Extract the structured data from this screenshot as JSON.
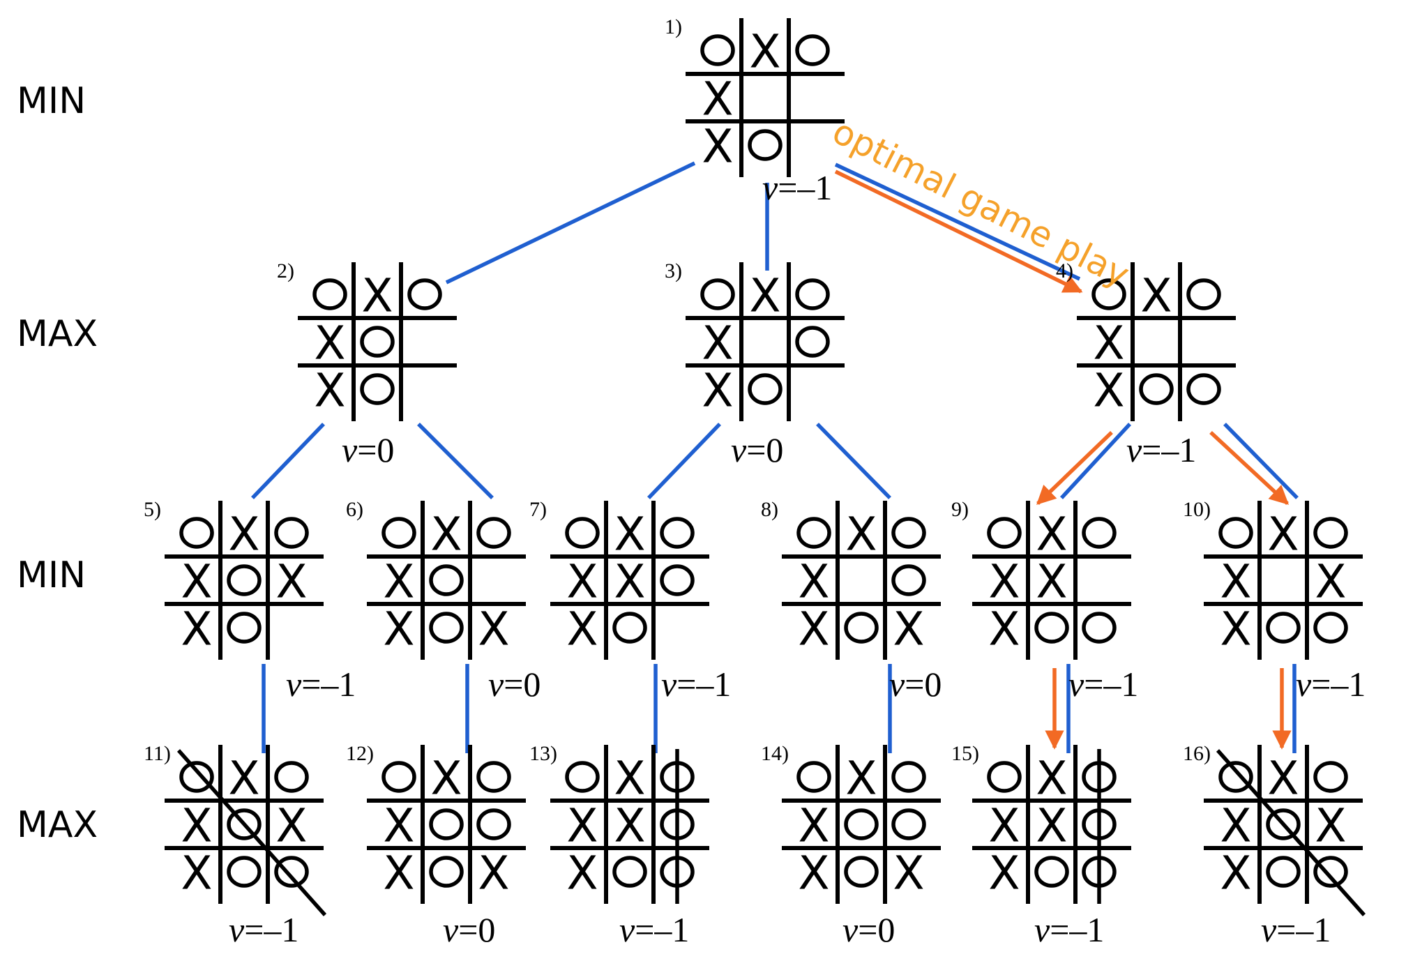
{
  "levels": [
    {
      "label": "MIN"
    },
    {
      "label": "MAX"
    },
    {
      "label": "MIN"
    },
    {
      "label": "MAX"
    }
  ],
  "annotation": {
    "text": "optimal game play",
    "color": "#f5a12a"
  },
  "colors": {
    "edge": "#1f5fd0",
    "optimal_arrow": "#f26a24",
    "annotation": "#f5a12a"
  },
  "nodes": [
    {
      "id": "1)",
      "level": 0,
      "board": [
        "O",
        "X",
        "O",
        "X",
        "",
        "",
        "X",
        "O",
        ""
      ],
      "value": "v=–1"
    },
    {
      "id": "2)",
      "level": 1,
      "board": [
        "O",
        "X",
        "O",
        "X",
        "O",
        "",
        "X",
        "O",
        ""
      ],
      "value": "v=0"
    },
    {
      "id": "3)",
      "level": 1,
      "board": [
        "O",
        "X",
        "O",
        "X",
        "",
        "O",
        "X",
        "O",
        ""
      ],
      "value": "v=0"
    },
    {
      "id": "4)",
      "level": 1,
      "board": [
        "O",
        "X",
        "O",
        "X",
        "",
        "",
        "X",
        "O",
        "O"
      ],
      "value": "v=–1"
    },
    {
      "id": "5)",
      "level": 2,
      "board": [
        "O",
        "X",
        "O",
        "X",
        "O",
        "X",
        "X",
        "O",
        ""
      ],
      "value": "v=–1"
    },
    {
      "id": "6)",
      "level": 2,
      "board": [
        "O",
        "X",
        "O",
        "X",
        "O",
        "",
        "X",
        "O",
        "X"
      ],
      "value": "v=0"
    },
    {
      "id": "7)",
      "level": 2,
      "board": [
        "O",
        "X",
        "O",
        "X",
        "X",
        "O",
        "X",
        "O",
        ""
      ],
      "value": "v=–1"
    },
    {
      "id": "8)",
      "level": 2,
      "board": [
        "O",
        "X",
        "O",
        "X",
        "",
        "O",
        "X",
        "O",
        "X"
      ],
      "value": "v=0"
    },
    {
      "id": "9)",
      "level": 2,
      "board": [
        "O",
        "X",
        "O",
        "X",
        "X",
        "",
        "X",
        "O",
        "O"
      ],
      "value": "v=–1"
    },
    {
      "id": "10)",
      "level": 2,
      "board": [
        "O",
        "X",
        "O",
        "X",
        "",
        "X",
        "X",
        "O",
        "O"
      ],
      "value": "v=–1"
    },
    {
      "id": "11)",
      "level": 3,
      "board": [
        "O",
        "X",
        "O",
        "X",
        "O",
        "X",
        "X",
        "O",
        "O"
      ],
      "value": "v=–1",
      "win_line": "diagonal"
    },
    {
      "id": "12)",
      "level": 3,
      "board": [
        "O",
        "X",
        "O",
        "X",
        "O",
        "O",
        "X",
        "O",
        "X"
      ],
      "value": "v=0"
    },
    {
      "id": "13)",
      "level": 3,
      "board": [
        "O",
        "X",
        "O",
        "X",
        "X",
        "O",
        "X",
        "O",
        "O"
      ],
      "value": "v=–1",
      "win_line": "right-column"
    },
    {
      "id": "14)",
      "level": 3,
      "board": [
        "O",
        "X",
        "O",
        "X",
        "O",
        "O",
        "X",
        "O",
        "X"
      ],
      "value": "v=0"
    },
    {
      "id": "15)",
      "level": 3,
      "board": [
        "O",
        "X",
        "O",
        "X",
        "X",
        "O",
        "X",
        "O",
        "O"
      ],
      "value": "v=–1",
      "win_line": "right-column"
    },
    {
      "id": "16)",
      "level": 3,
      "board": [
        "O",
        "X",
        "O",
        "X",
        "O",
        "X",
        "X",
        "O",
        "O"
      ],
      "value": "v=–1",
      "win_line": "diagonal"
    }
  ],
  "edges": [
    {
      "from": "1)",
      "to": "2)"
    },
    {
      "from": "1)",
      "to": "3)"
    },
    {
      "from": "1)",
      "to": "4)",
      "optimal": true
    },
    {
      "from": "2)",
      "to": "5)"
    },
    {
      "from": "2)",
      "to": "6)"
    },
    {
      "from": "3)",
      "to": "7)"
    },
    {
      "from": "3)",
      "to": "8)"
    },
    {
      "from": "4)",
      "to": "9)",
      "optimal": true
    },
    {
      "from": "4)",
      "to": "10)",
      "optimal": true
    },
    {
      "from": "5)",
      "to": "11)"
    },
    {
      "from": "6)",
      "to": "12)"
    },
    {
      "from": "7)",
      "to": "13)"
    },
    {
      "from": "8)",
      "to": "14)"
    },
    {
      "from": "9)",
      "to": "15)",
      "optimal": true
    },
    {
      "from": "10)",
      "to": "16)",
      "optimal": true
    }
  ]
}
